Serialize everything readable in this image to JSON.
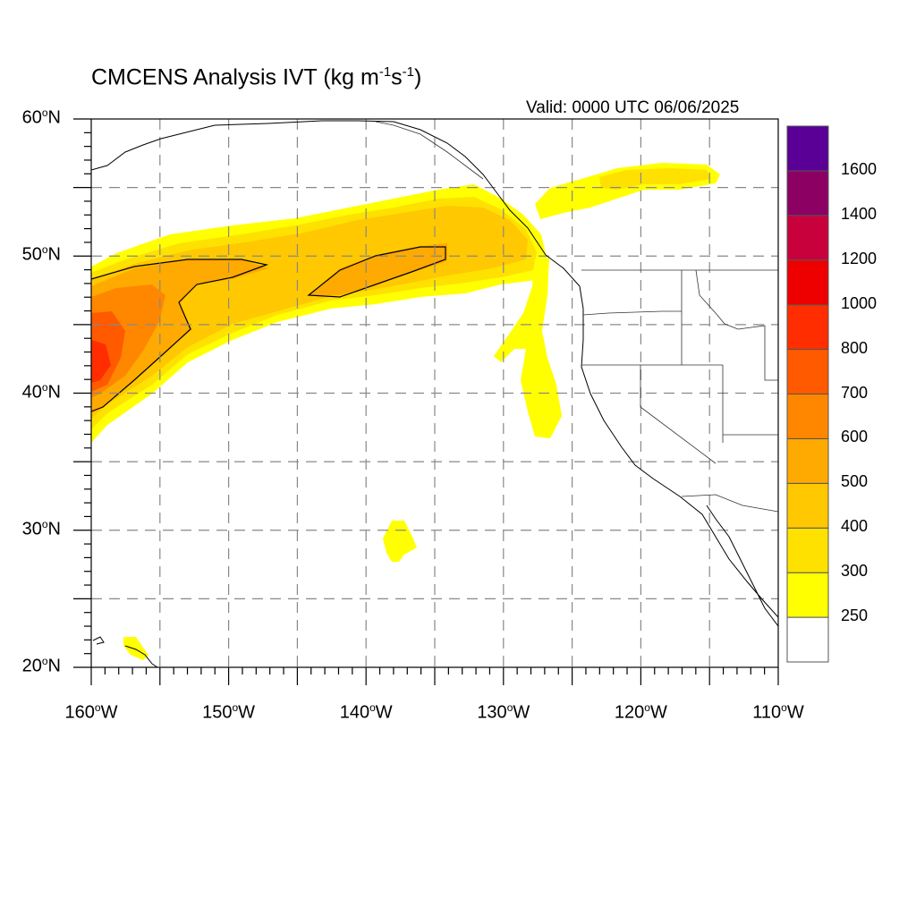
{
  "title": {
    "main": "CMCENS Analysis IVT (kg m",
    "exp1": "-1",
    "mid": "s",
    "exp2": "-1",
    "end": ")"
  },
  "valid_time": "Valid: 0000 UTC 06/06/2025",
  "map": {
    "projection": "cylindrical equidistant",
    "lon_range": [
      -160,
      -110
    ],
    "lat_range": [
      20,
      60
    ],
    "gridlines": "dashed every 5 degrees",
    "lat_tick_labels": [
      {
        "value": 60,
        "num": "60",
        "unit": "o",
        "suffix": "N"
      },
      {
        "value": 50,
        "num": "50",
        "unit": "o",
        "suffix": "N"
      },
      {
        "value": 40,
        "num": "40",
        "unit": "o",
        "suffix": "N"
      },
      {
        "value": 30,
        "num": "30",
        "unit": "o",
        "suffix": "N"
      },
      {
        "value": 20,
        "num": "20",
        "unit": "o",
        "suffix": "N"
      }
    ],
    "lon_tick_labels": [
      {
        "value": -160,
        "num": "160",
        "unit": "o",
        "suffix": "W"
      },
      {
        "value": -150,
        "num": "150",
        "unit": "o",
        "suffix": "W"
      },
      {
        "value": -140,
        "num": "140",
        "unit": "o",
        "suffix": "W"
      },
      {
        "value": -130,
        "num": "130",
        "unit": "o",
        "suffix": "W"
      },
      {
        "value": -120,
        "num": "120",
        "unit": "o",
        "suffix": "W"
      },
      {
        "value": -110,
        "num": "110",
        "unit": "o",
        "suffix": "W"
      }
    ]
  },
  "colorbar": {
    "levels": [
      250,
      300,
      400,
      500,
      600,
      700,
      800,
      1000,
      1200,
      1400,
      1600
    ],
    "labels": [
      "250",
      "300",
      "400",
      "500",
      "600",
      "700",
      "800",
      "1000",
      "1200",
      "1400",
      "1600"
    ],
    "colors": [
      "#ffffff",
      "#ffff00",
      "#ffe100",
      "#ffc800",
      "#ffaa00",
      "#ff8700",
      "#ff5a00",
      "#ff2d00",
      "#ee0000",
      "#c8003c",
      "#8c0064",
      "#5a0096"
    ]
  },
  "chart_data": {
    "type": "heatmap",
    "variable": "IVT",
    "units": "kg m-1 s-1",
    "regions": [
      {
        "feature": "main atmospheric river band",
        "lon": [
          -160,
          -127
        ],
        "lat": [
          37,
          54
        ],
        "peak_ivt": 800
      },
      {
        "feature": "core over western edge",
        "lon": [
          -160,
          -157
        ],
        "lat": [
          40,
          45
        ],
        "peak_ivt": 800
      },
      {
        "feature": "secondary maximum",
        "lon": [
          -144,
          -135
        ],
        "lat": [
          47,
          51
        ],
        "peak_ivt": 600
      },
      {
        "feature": "filament off California",
        "lon": [
          -128,
          -125
        ],
        "lat": [
          37,
          49
        ],
        "peak_ivt": 300
      },
      {
        "feature": "band over British Columbia",
        "lon": [
          -127,
          -114
        ],
        "lat": [
          52,
          57
        ],
        "peak_ivt": 300
      },
      {
        "feature": "isolated patch",
        "lon": [
          -139,
          -136
        ],
        "lat": [
          28,
          31
        ],
        "peak_ivt": 300
      },
      {
        "feature": "patch near Hawaii",
        "lon": [
          -158,
          -156
        ],
        "lat": [
          21,
          23
        ],
        "peak_ivt": 300
      }
    ]
  }
}
